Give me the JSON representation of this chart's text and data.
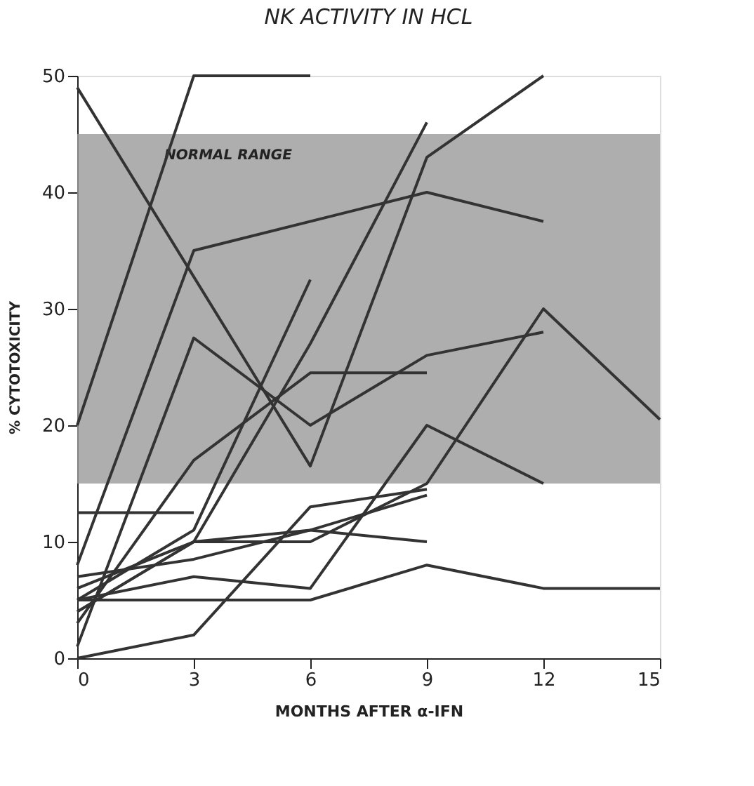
{
  "chart_data": {
    "type": "line",
    "title": "NK ACTIVITY IN HCL",
    "xlabel": "MONTHS AFTER α-IFN",
    "ylabel": "% CYTOTOXICITY",
    "xlim": [
      0,
      15
    ],
    "xticks": [
      0,
      3,
      6,
      9,
      12,
      15
    ],
    "ylim": [
      0,
      50
    ],
    "yticks": [
      0,
      10,
      20,
      30,
      40,
      50
    ],
    "grid": false,
    "legend": false,
    "marker": "none",
    "line_style": "solid",
    "bands": [
      {
        "axis": "y",
        "from": 15,
        "to": 45,
        "label": "NORMAL RANGE",
        "color": "#9a9a9a"
      }
    ],
    "series": [
      {
        "color": "#333333",
        "x": [
          0,
          3,
          6
        ],
        "values": [
          20,
          50,
          50
        ]
      },
      {
        "color": "#333333",
        "x": [
          0,
          6,
          9,
          12
        ],
        "values": [
          49,
          16.5,
          43,
          50
        ]
      },
      {
        "color": "#333333",
        "x": [
          0,
          3,
          9,
          12
        ],
        "values": [
          8,
          35,
          40,
          37.5
        ]
      },
      {
        "color": "#333333",
        "x": [
          0,
          3,
          6,
          9,
          12
        ],
        "values": [
          1,
          27.5,
          20,
          26,
          28
        ]
      },
      {
        "color": "#333333",
        "x": [
          0,
          3,
          6,
          9
        ],
        "values": [
          3,
          17,
          24.5,
          24.5
        ]
      },
      {
        "color": "#333333",
        "x": [
          0,
          3,
          6
        ],
        "values": [
          5,
          11,
          32.5
        ]
      },
      {
        "color": "#333333",
        "x": [
          0,
          3,
          6,
          9
        ],
        "values": [
          4,
          10,
          27,
          46
        ]
      },
      {
        "color": "#333333",
        "x": [
          0,
          3
        ],
        "values": [
          12.5,
          12.5
        ]
      },
      {
        "color": "#333333",
        "x": [
          0,
          3,
          6,
          9,
          12,
          15
        ],
        "values": [
          6,
          10,
          10,
          15,
          30,
          20.5
        ]
      },
      {
        "color": "#333333",
        "x": [
          0,
          3,
          6,
          9
        ],
        "values": [
          7,
          8.5,
          11,
          10
        ]
      },
      {
        "color": "#333333",
        "x": [
          0,
          3,
          6,
          9
        ],
        "values": [
          0,
          2,
          13,
          14.5
        ]
      },
      {
        "color": "#333333",
        "x": [
          0,
          3,
          6,
          9,
          12
        ],
        "values": [
          5,
          7,
          6,
          20,
          15
        ]
      },
      {
        "color": "#333333",
        "x": [
          0,
          3,
          6,
          9,
          12,
          15
        ],
        "values": [
          5,
          5,
          5,
          8,
          6,
          6
        ]
      },
      {
        "color": "#333333",
        "x": [
          0,
          3,
          6,
          9
        ],
        "values": [
          4,
          10,
          11,
          14
        ]
      }
    ]
  }
}
